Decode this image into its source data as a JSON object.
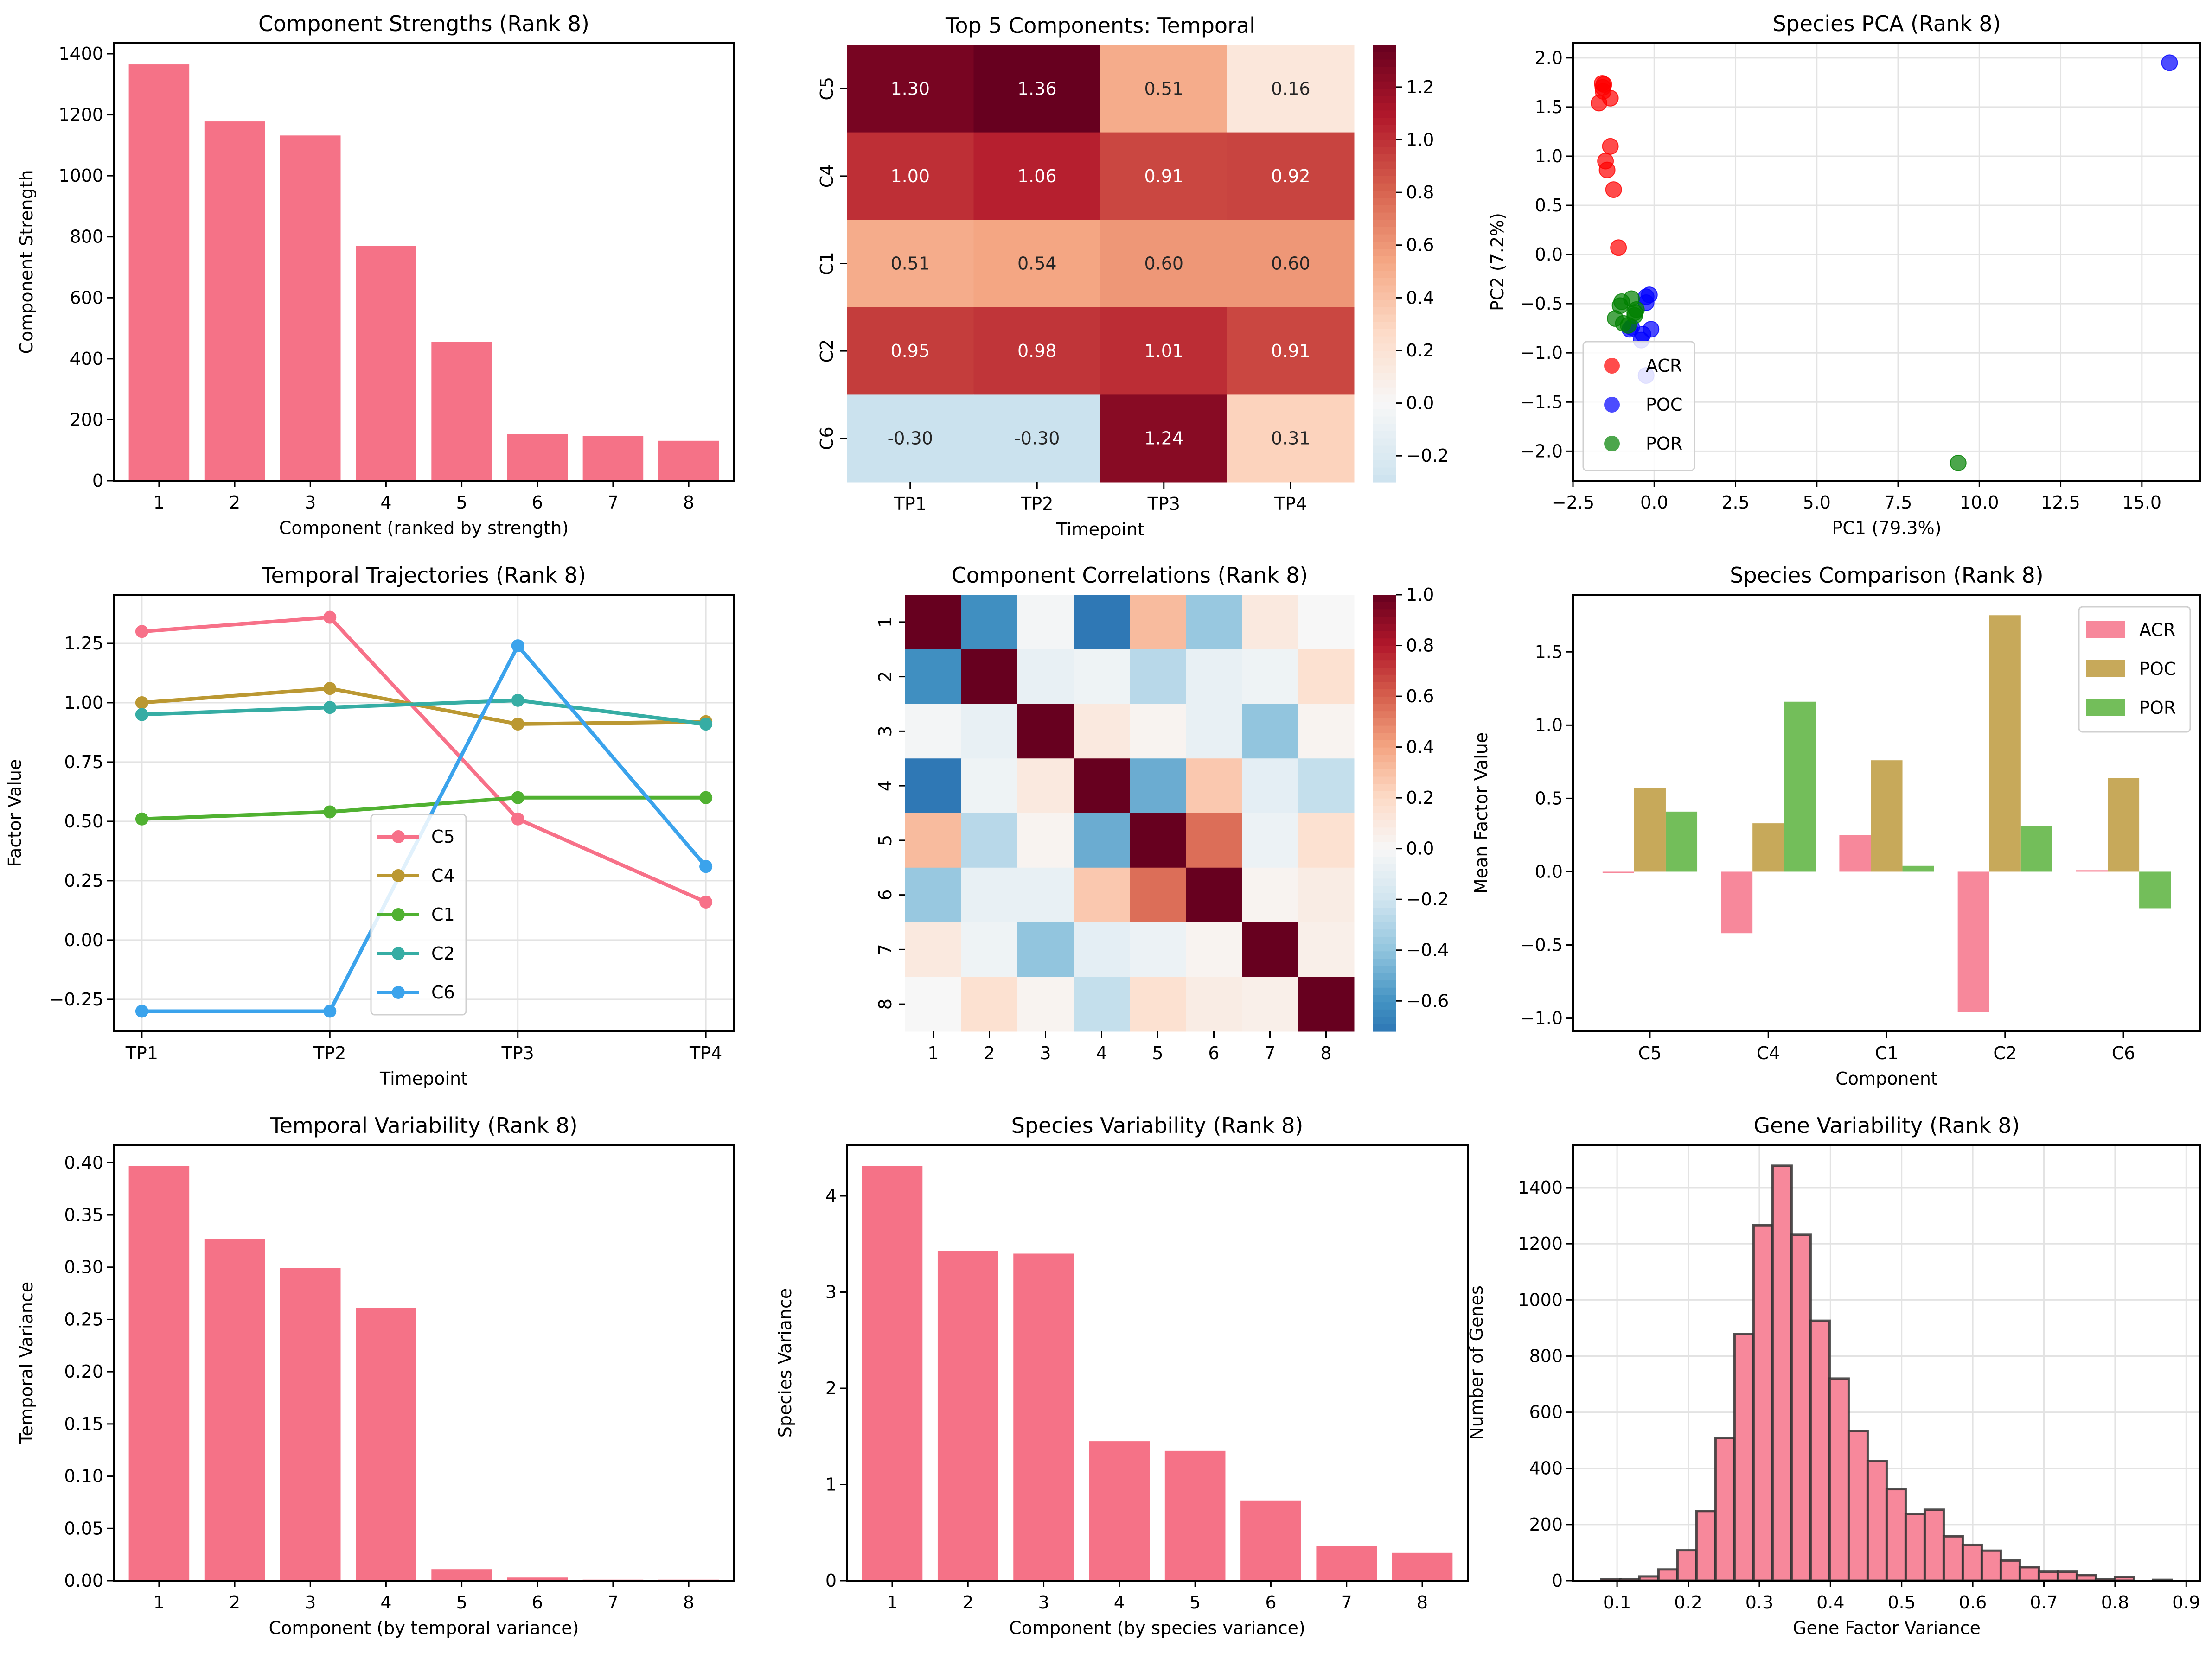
{
  "figure": {
    "background": "#ffffff",
    "accent": "#f57287"
  },
  "chart_data": [
    {
      "id": "strengths",
      "type": "bar",
      "title": "Component Strengths (Rank 8)",
      "xlabel": "Component (ranked by strength)",
      "ylabel": "Component Strength",
      "categories": [
        "1",
        "2",
        "3",
        "4",
        "5",
        "6",
        "7",
        "8"
      ],
      "values": [
        1365,
        1178,
        1132,
        770,
        455,
        153,
        147,
        131
      ],
      "ylim": [
        0,
        1435
      ],
      "yticks": [
        0,
        200,
        400,
        600,
        800,
        1000,
        1200,
        1400
      ],
      "ytick_labels": [
        "0",
        "200",
        "400",
        "600",
        "800",
        "1000",
        "1200",
        "1400"
      ],
      "color": "#f57287",
      "grid": false
    },
    {
      "id": "temporal_heatmap",
      "type": "heatmap",
      "title": "Top 5 Components: Temporal",
      "xlabel": "Timepoint",
      "ylabel": "",
      "x": [
        "TP1",
        "TP2",
        "TP3",
        "TP4"
      ],
      "y": [
        "C5",
        "C4",
        "C1",
        "C2",
        "C6"
      ],
      "values": [
        [
          1.3,
          1.36,
          0.51,
          0.16
        ],
        [
          1.0,
          1.06,
          0.91,
          0.92
        ],
        [
          0.51,
          0.54,
          0.6,
          0.6
        ],
        [
          0.95,
          0.98,
          1.01,
          0.91
        ],
        [
          -0.3,
          -0.3,
          1.24,
          0.31
        ]
      ],
      "annotations": [
        [
          "1.30",
          "1.36",
          "0.51",
          "0.16"
        ],
        [
          "1.00",
          "1.06",
          "0.91",
          "0.92"
        ],
        [
          "0.51",
          "0.54",
          "0.60",
          "0.60"
        ],
        [
          "0.95",
          "0.98",
          "1.01",
          "0.91"
        ],
        [
          "-0.30",
          "-0.30",
          "1.24",
          "0.31"
        ]
      ],
      "colormap": "RdBu_r",
      "center": 0,
      "vmin": -0.3,
      "vmax": 1.36,
      "colorbar_ticks": [
        -0.2,
        0.0,
        0.2,
        0.4,
        0.6,
        0.8,
        1.0,
        1.2
      ],
      "colorbar_tick_labels": [
        "−0.2",
        "0.0",
        "0.2",
        "0.4",
        "0.6",
        "0.8",
        "1.0",
        "1.2"
      ]
    },
    {
      "id": "species_pca",
      "type": "scatter",
      "title": "Species PCA (Rank 8)",
      "xlabel": "PC1 (79.3%)",
      "ylabel": "PC2 (7.2%)",
      "xlim": [
        -2.5,
        16.8
      ],
      "ylim": [
        -2.3,
        2.15
      ],
      "xticks": [
        -2.5,
        0.0,
        2.5,
        5.0,
        7.5,
        10.0,
        12.5,
        15.0
      ],
      "xtick_labels": [
        "−2.5",
        "0.0",
        "2.5",
        "5.0",
        "7.5",
        "10.0",
        "12.5",
        "15.0"
      ],
      "yticks": [
        -2.0,
        -1.5,
        -1.0,
        -0.5,
        0.0,
        0.5,
        1.0,
        1.5,
        2.0
      ],
      "ytick_labels": [
        "−2.0",
        "−1.5",
        "−1.0",
        "−0.5",
        "0.0",
        "0.5",
        "1.0",
        "1.5",
        "2.0"
      ],
      "grid": true,
      "legend": "lower-left",
      "series": [
        {
          "name": "ACR",
          "color": "#ff0000",
          "points": [
            [
              -1.6,
              1.74
            ],
            [
              -1.55,
              1.73
            ],
            [
              -1.58,
              1.7
            ],
            [
              -1.57,
              1.66
            ],
            [
              -1.35,
              1.59
            ],
            [
              -1.7,
              1.54
            ],
            [
              -1.35,
              1.1
            ],
            [
              -1.5,
              0.95
            ],
            [
              -1.45,
              0.86
            ],
            [
              -1.25,
              0.66
            ],
            [
              -1.1,
              0.07
            ]
          ]
        },
        {
          "name": "POC",
          "color": "#0000ff",
          "points": [
            [
              -0.15,
              -0.41
            ],
            [
              -0.25,
              -0.43
            ],
            [
              -0.25,
              -0.49
            ],
            [
              -0.7,
              -0.74
            ],
            [
              -0.75,
              -0.76
            ],
            [
              -0.1,
              -0.76
            ],
            [
              -0.35,
              -0.81
            ],
            [
              -0.4,
              -0.87
            ],
            [
              -0.25,
              -1.23
            ],
            [
              15.85,
              1.95
            ]
          ]
        },
        {
          "name": "POR",
          "color": "#008000",
          "points": [
            [
              -0.7,
              -0.45
            ],
            [
              -1.0,
              -0.48
            ],
            [
              -1.05,
              -0.52
            ],
            [
              -0.55,
              -0.56
            ],
            [
              -0.6,
              -0.59
            ],
            [
              -0.6,
              -0.62
            ],
            [
              -1.2,
              -0.65
            ],
            [
              -0.95,
              -0.7
            ],
            [
              -0.8,
              -0.72
            ],
            [
              9.35,
              -2.12
            ]
          ]
        }
      ]
    },
    {
      "id": "temporal_trajectories",
      "type": "line",
      "title": "Temporal Trajectories (Rank 8)",
      "xlabel": "Timepoint",
      "ylabel": "Factor Value",
      "x": [
        "TP1",
        "TP2",
        "TP3",
        "TP4"
      ],
      "ylim": [
        -0.385,
        1.455
      ],
      "yticks": [
        -0.25,
        0.0,
        0.25,
        0.5,
        0.75,
        1.0,
        1.25
      ],
      "ytick_labels": [
        "−0.25",
        "0.00",
        "0.25",
        "0.50",
        "0.75",
        "1.00",
        "1.25"
      ],
      "grid": true,
      "legend": "lower-center",
      "series": [
        {
          "name": "C5",
          "color": "#f77189",
          "values": [
            1.3,
            1.36,
            0.51,
            0.16
          ]
        },
        {
          "name": "C4",
          "color": "#bb9832",
          "values": [
            1.0,
            1.06,
            0.91,
            0.92
          ]
        },
        {
          "name": "C1",
          "color": "#50b131",
          "values": [
            0.51,
            0.54,
            0.6,
            0.6
          ]
        },
        {
          "name": "C2",
          "color": "#36ada4",
          "values": [
            0.95,
            0.98,
            1.01,
            0.91
          ]
        },
        {
          "name": "C6",
          "color": "#3ba3ec",
          "values": [
            -0.3,
            -0.3,
            1.24,
            0.31
          ]
        }
      ]
    },
    {
      "id": "component_correlations",
      "type": "heatmap",
      "title": "Component Correlations (Rank 8)",
      "xlabel": "",
      "ylabel": "",
      "x": [
        "1",
        "2",
        "3",
        "4",
        "5",
        "6",
        "7",
        "8"
      ],
      "y": [
        "1",
        "2",
        "3",
        "4",
        "5",
        "6",
        "7",
        "8"
      ],
      "values": [
        [
          1.0,
          -0.62,
          -0.02,
          -0.72,
          0.32,
          -0.38,
          0.1,
          0.0
        ],
        [
          -0.62,
          1.0,
          -0.08,
          -0.05,
          -0.28,
          -0.08,
          -0.05,
          0.16
        ],
        [
          -0.02,
          -0.08,
          1.0,
          0.1,
          0.03,
          -0.08,
          -0.4,
          0.03
        ],
        [
          -0.72,
          -0.05,
          0.1,
          1.0,
          -0.5,
          0.27,
          -0.1,
          -0.24
        ],
        [
          0.32,
          -0.28,
          0.03,
          -0.5,
          1.0,
          0.56,
          -0.06,
          0.16
        ],
        [
          -0.38,
          -0.08,
          -0.08,
          0.27,
          0.56,
          1.0,
          0.03,
          0.08
        ],
        [
          0.1,
          -0.05,
          -0.4,
          -0.1,
          -0.06,
          0.03,
          1.0,
          0.06
        ],
        [
          0.0,
          0.16,
          0.03,
          -0.24,
          0.16,
          0.08,
          0.06,
          1.0
        ]
      ],
      "colormap": "RdBu_r",
      "center": 0,
      "vmin": -0.72,
      "vmax": 1.0,
      "colorbar_ticks": [
        -0.6,
        -0.4,
        -0.2,
        0.0,
        0.2,
        0.4,
        0.6,
        0.8,
        1.0
      ],
      "colorbar_tick_labels": [
        "−0.6",
        "−0.4",
        "−0.2",
        "0.0",
        "0.2",
        "0.4",
        "0.6",
        "0.8",
        "1.0"
      ]
    },
    {
      "id": "species_comparison",
      "type": "bar",
      "title": "Species Comparison (Rank 8)",
      "xlabel": "Component",
      "ylabel": "Mean Factor Value",
      "categories": [
        "C5",
        "C4",
        "C1",
        "C2",
        "C6"
      ],
      "ylim": [
        -1.09,
        1.89
      ],
      "yticks": [
        -1.0,
        -0.5,
        0.0,
        0.5,
        1.0,
        1.5
      ],
      "ytick_labels": [
        "−1.0",
        "−0.5",
        "0.0",
        "0.5",
        "1.0",
        "1.5"
      ],
      "legend": "top-right",
      "series": [
        {
          "name": "ACR",
          "color": "#f7889b",
          "values": [
            -0.01,
            -0.42,
            0.25,
            -0.96,
            0.01
          ]
        },
        {
          "name": "POC",
          "color": "#c7a95a",
          "values": [
            0.57,
            0.33,
            0.76,
            1.75,
            0.64
          ]
        },
        {
          "name": "POR",
          "color": "#73be5a",
          "values": [
            0.41,
            1.16,
            0.04,
            0.31,
            -0.25
          ]
        }
      ]
    },
    {
      "id": "temporal_variability",
      "type": "bar",
      "title": "Temporal Variability (Rank 8)",
      "xlabel": "Component (by temporal variance)",
      "ylabel": "Temporal Variance",
      "categories": [
        "1",
        "2",
        "3",
        "4",
        "5",
        "6",
        "7",
        "8"
      ],
      "values": [
        0.397,
        0.327,
        0.299,
        0.261,
        0.011,
        0.003,
        0.001,
        0.001
      ],
      "ylim": [
        0,
        0.417
      ],
      "yticks": [
        0.0,
        0.05,
        0.1,
        0.15,
        0.2,
        0.25,
        0.3,
        0.35,
        0.4
      ],
      "ytick_labels": [
        "0.00",
        "0.05",
        "0.10",
        "0.15",
        "0.20",
        "0.25",
        "0.30",
        "0.35",
        "0.40"
      ],
      "color": "#f57287",
      "grid": false
    },
    {
      "id": "species_variability",
      "type": "bar",
      "title": "Species Variability (Rank 8)",
      "xlabel": "Component (by species variance)",
      "ylabel": "Species Variance",
      "categories": [
        "1",
        "2",
        "3",
        "4",
        "5",
        "6",
        "7",
        "8"
      ],
      "values": [
        4.31,
        3.43,
        3.4,
        1.45,
        1.35,
        0.83,
        0.36,
        0.29
      ],
      "ylim": [
        0,
        4.53
      ],
      "yticks": [
        0,
        1,
        2,
        3,
        4
      ],
      "ytick_labels": [
        "0",
        "1",
        "2",
        "3",
        "4"
      ],
      "color": "#f57287",
      "grid": false
    },
    {
      "id": "gene_variability",
      "type": "bar",
      "subtype": "histogram",
      "title": "Gene Variability (Rank 8)",
      "xlabel": "Gene Factor Variance",
      "ylabel": "Number of Genes",
      "bin_start": 0.078,
      "bin_width": 0.02673,
      "counts": [
        5,
        5,
        15,
        40,
        108,
        248,
        508,
        878,
        1266,
        1478,
        1232,
        926,
        720,
        534,
        426,
        326,
        238,
        253,
        158,
        128,
        107,
        72,
        48,
        32,
        32,
        20,
        5,
        13,
        0,
        3
      ],
      "xlim": [
        0.038,
        0.92
      ],
      "ylim": [
        0,
        1552
      ],
      "xticks": [
        0.1,
        0.2,
        0.3,
        0.4,
        0.5,
        0.6,
        0.7,
        0.8,
        0.9
      ],
      "xtick_labels": [
        "0.1",
        "0.2",
        "0.3",
        "0.4",
        "0.5",
        "0.6",
        "0.7",
        "0.8",
        "0.9"
      ],
      "yticks": [
        0,
        200,
        400,
        600,
        800,
        1000,
        1200,
        1400
      ],
      "ytick_labels": [
        "0",
        "200",
        "400",
        "600",
        "800",
        "1000",
        "1200",
        "1400"
      ],
      "color": "#f7889b",
      "edgecolor": "#333333",
      "grid": true
    }
  ]
}
